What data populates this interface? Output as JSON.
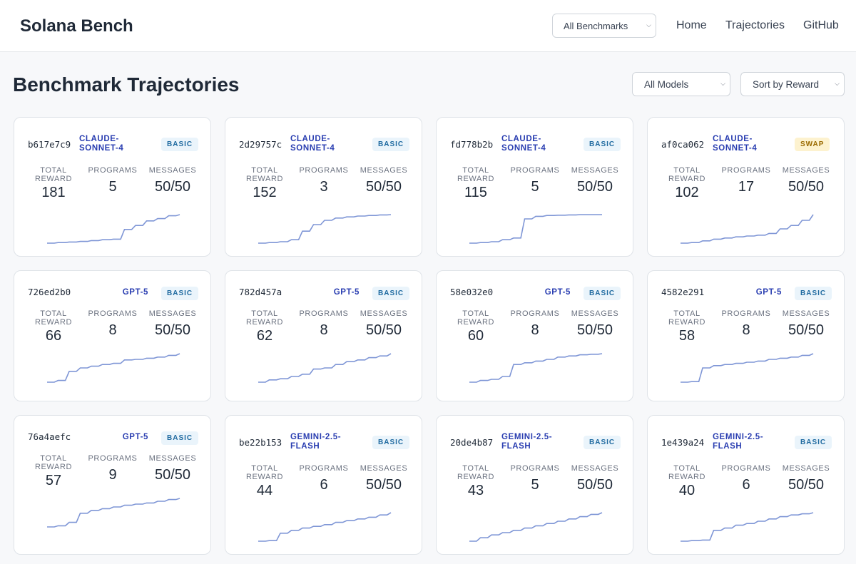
{
  "header": {
    "brand": "Solana Bench",
    "benchmark_select": "All Benchmarks",
    "nav": [
      "Home",
      "Trajectories",
      "GitHub"
    ]
  },
  "page": {
    "title": "Benchmark Trajectories",
    "model_filter": "All Models",
    "sort_filter": "Sort by Reward"
  },
  "labels": {
    "total": "TOTAL",
    "reward": "REWARD",
    "programs": "PROGRAMS",
    "messages": "MESSAGES"
  },
  "cards": [
    {
      "id": "b617e7c9",
      "model": "CLAUDE-SONNET-4",
      "type": "BASIC",
      "reward": "181",
      "programs": "5",
      "messages": "50/50",
      "trend": [
        0,
        0.02,
        0.04,
        0.06,
        0.09,
        0.12,
        0.14,
        0.48,
        0.62,
        0.78,
        0.86,
        0.96,
        1
      ]
    },
    {
      "id": "2d29757c",
      "model": "CLAUDE-SONNET-4",
      "type": "BASIC",
      "reward": "152",
      "programs": "3",
      "messages": "50/50",
      "trend": [
        0,
        0.02,
        0.05,
        0.12,
        0.42,
        0.65,
        0.8,
        0.88,
        0.92,
        0.95,
        0.97,
        0.99,
        1
      ]
    },
    {
      "id": "fd778b2b",
      "model": "CLAUDE-SONNET-4",
      "type": "BASIC",
      "reward": "115",
      "programs": "5",
      "messages": "50/50",
      "trend": [
        0,
        0.02,
        0.05,
        0.12,
        0.18,
        0.85,
        0.94,
        0.97,
        0.98,
        0.99,
        1,
        1,
        1
      ]
    },
    {
      "id": "af0ca062",
      "model": "CLAUDE-SONNET-4",
      "type": "SWAP",
      "reward": "102",
      "programs": "17",
      "messages": "50/50",
      "trend": [
        0,
        0.02,
        0.08,
        0.14,
        0.18,
        0.22,
        0.25,
        0.28,
        0.34,
        0.5,
        0.62,
        0.8,
        1
      ]
    },
    {
      "id": "726ed2b0",
      "model": "GPT-5",
      "type": "BASIC",
      "reward": "66",
      "programs": "8",
      "messages": "50/50",
      "trend": [
        0,
        0.06,
        0.38,
        0.5,
        0.56,
        0.62,
        0.66,
        0.78,
        0.8,
        0.84,
        0.88,
        0.94,
        1
      ]
    },
    {
      "id": "782d457a",
      "model": "GPT-5",
      "type": "BASIC",
      "reward": "62",
      "programs": "8",
      "messages": "50/50",
      "trend": [
        0,
        0.08,
        0.12,
        0.2,
        0.28,
        0.46,
        0.5,
        0.62,
        0.72,
        0.78,
        0.86,
        0.92,
        1
      ]
    },
    {
      "id": "58e032e0",
      "model": "GPT-5",
      "type": "BASIC",
      "reward": "60",
      "programs": "8",
      "messages": "50/50",
      "trend": [
        0,
        0.06,
        0.1,
        0.2,
        0.62,
        0.68,
        0.74,
        0.8,
        0.88,
        0.92,
        0.96,
        0.98,
        1
      ]
    },
    {
      "id": "4582e291",
      "model": "GPT-5",
      "type": "BASIC",
      "reward": "58",
      "programs": "8",
      "messages": "50/50",
      "trend": [
        0,
        0.02,
        0.5,
        0.58,
        0.62,
        0.66,
        0.7,
        0.74,
        0.8,
        0.84,
        0.88,
        0.94,
        1
      ]
    },
    {
      "id": "76a4aefc",
      "model": "GPT-5",
      "type": "BASIC",
      "reward": "57",
      "programs": "9",
      "messages": "50/50",
      "trend": [
        0,
        0.04,
        0.16,
        0.48,
        0.58,
        0.64,
        0.7,
        0.76,
        0.8,
        0.84,
        0.9,
        0.96,
        1
      ]
    },
    {
      "id": "be22b153",
      "model": "GEMINI-2.5-FLASH",
      "type": "BASIC",
      "reward": "44",
      "programs": "6",
      "messages": "50/50",
      "trend": [
        0,
        0.02,
        0.28,
        0.38,
        0.46,
        0.52,
        0.58,
        0.66,
        0.72,
        0.78,
        0.84,
        0.92,
        1
      ]
    },
    {
      "id": "20de4b87",
      "model": "GEMINI-2.5-FLASH",
      "type": "BASIC",
      "reward": "43",
      "programs": "5",
      "messages": "50/50",
      "trend": [
        0,
        0.12,
        0.22,
        0.3,
        0.38,
        0.46,
        0.54,
        0.62,
        0.7,
        0.78,
        0.86,
        0.94,
        1
      ]
    },
    {
      "id": "1e439a24",
      "model": "GEMINI-2.5-FLASH",
      "type": "BASIC",
      "reward": "40",
      "programs": "6",
      "messages": "50/50",
      "trend": [
        0,
        0.02,
        0.04,
        0.38,
        0.46,
        0.56,
        0.62,
        0.7,
        0.78,
        0.86,
        0.92,
        0.96,
        1
      ]
    }
  ]
}
